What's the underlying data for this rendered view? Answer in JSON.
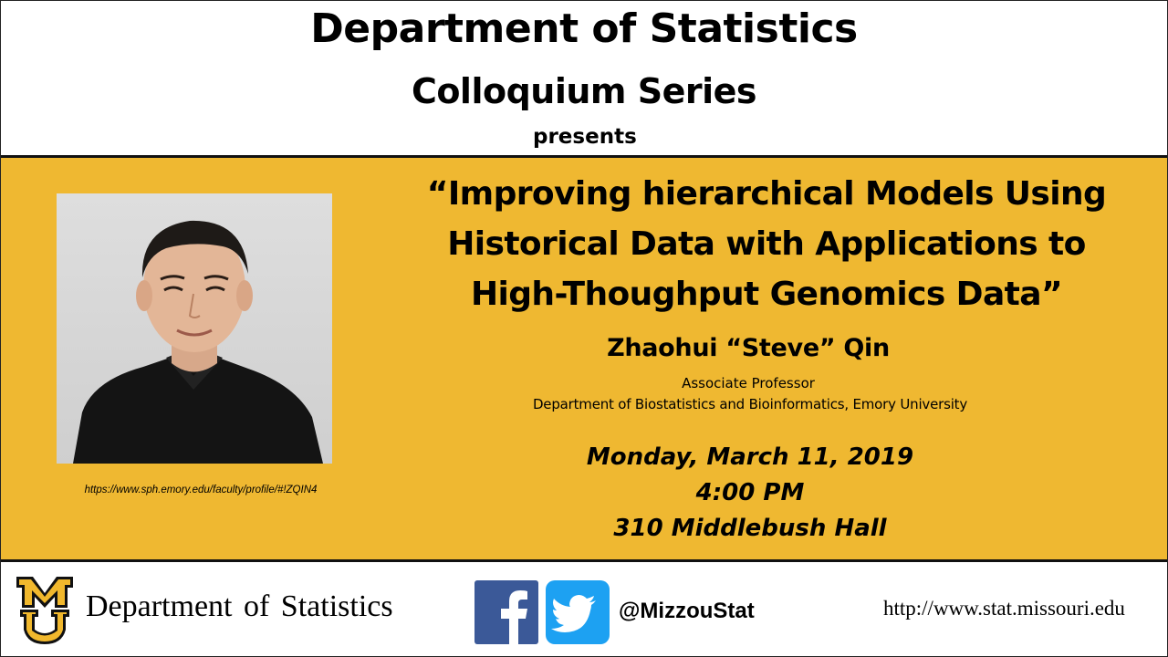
{
  "header": {
    "title": "Department of Statistics",
    "subtitle": "Colloquium Series",
    "presents": "presents"
  },
  "talk": {
    "title_lines": [
      "“Improving hierarchical Models Using",
      "Historical Data with Applications to",
      "High-Thoughput Genomics Data”"
    ],
    "speaker": "Zhaohui “Steve” Qin",
    "position": "Associate Professor",
    "affiliation": "Department of Biostatistics and Bioinformatics, Emory University",
    "date": "Monday, March 11, 2019",
    "time": "4:00 PM",
    "location": "310 Middlebush Hall"
  },
  "photo": {
    "credit_url": "https://www.sph.emory.edu/faculty/profile/#!ZQIN4"
  },
  "footer": {
    "dept_name": "Department  of Statistics",
    "social_handle": "@MizzouStat",
    "website": "http://www.stat.missouri.edu",
    "logo_letters": "MU",
    "icons": [
      "mizzou-logo-icon",
      "facebook-icon",
      "twitter-icon"
    ]
  },
  "colors": {
    "band": "#efb831",
    "facebook": "#3b5998",
    "twitter": "#1da1f2",
    "mizzou_gold": "#f1b82d"
  }
}
